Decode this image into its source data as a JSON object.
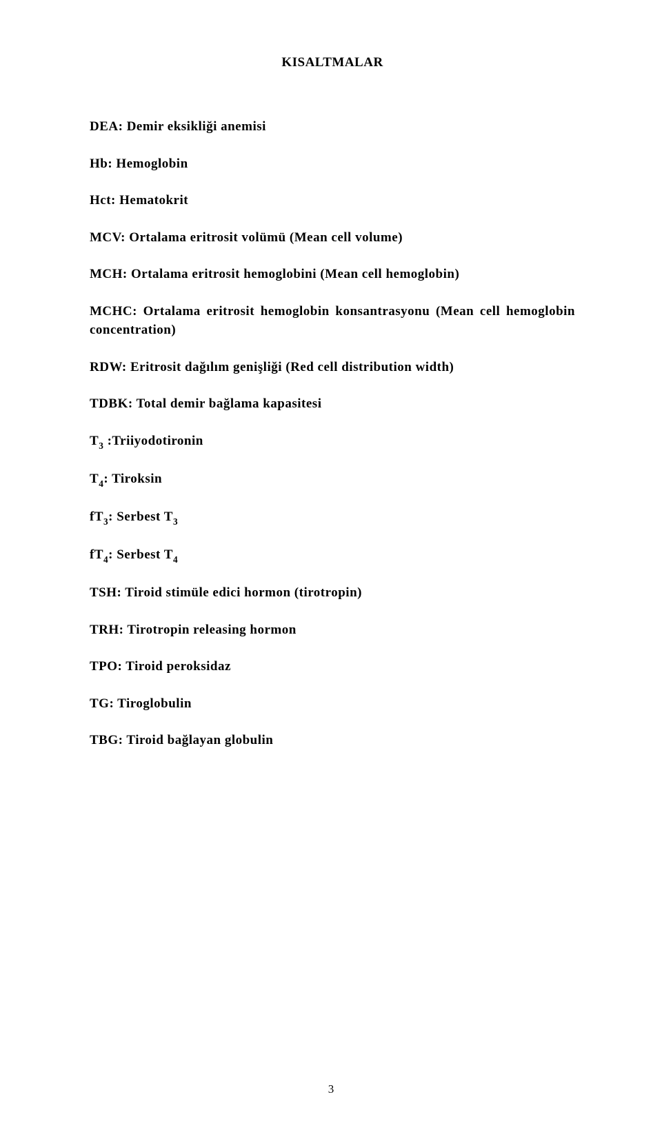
{
  "title": "KISALTMALAR",
  "entries": [
    "DEA: Demir eksikliği anemisi",
    "Hb: Hemoglobin",
    "Hct: Hematokrit",
    "MCV: Ortalama eritrosit volümü (Mean cell volume)",
    "MCH: Ortalama eritrosit hemoglobini (Mean cell hemoglobin)",
    "MCHC: Ortalama eritrosit hemoglobin konsantrasyonu (Mean cell hemoglobin concentration)",
    "RDW: Eritrosit dağılım genişliği (Red cell distribution width)",
    "TDBK: Total demir bağlama kapasitesi",
    "T__SUB3__ :Triiyodotironin",
    "T__SUB4__: Tiroksin",
    "fT__SUB3__: Serbest T__SUB3__",
    "fT__SUB4__: Serbest T__SUB4__",
    "TSH: Tiroid stimüle edici hormon (tirotropin)",
    "TRH: Tirotropin releasing hormon",
    "TPO: Tiroid peroksidaz",
    "TG: Tiroglobulin",
    "TBG: Tiroid bağlayan globulin"
  ],
  "page_number": "3"
}
